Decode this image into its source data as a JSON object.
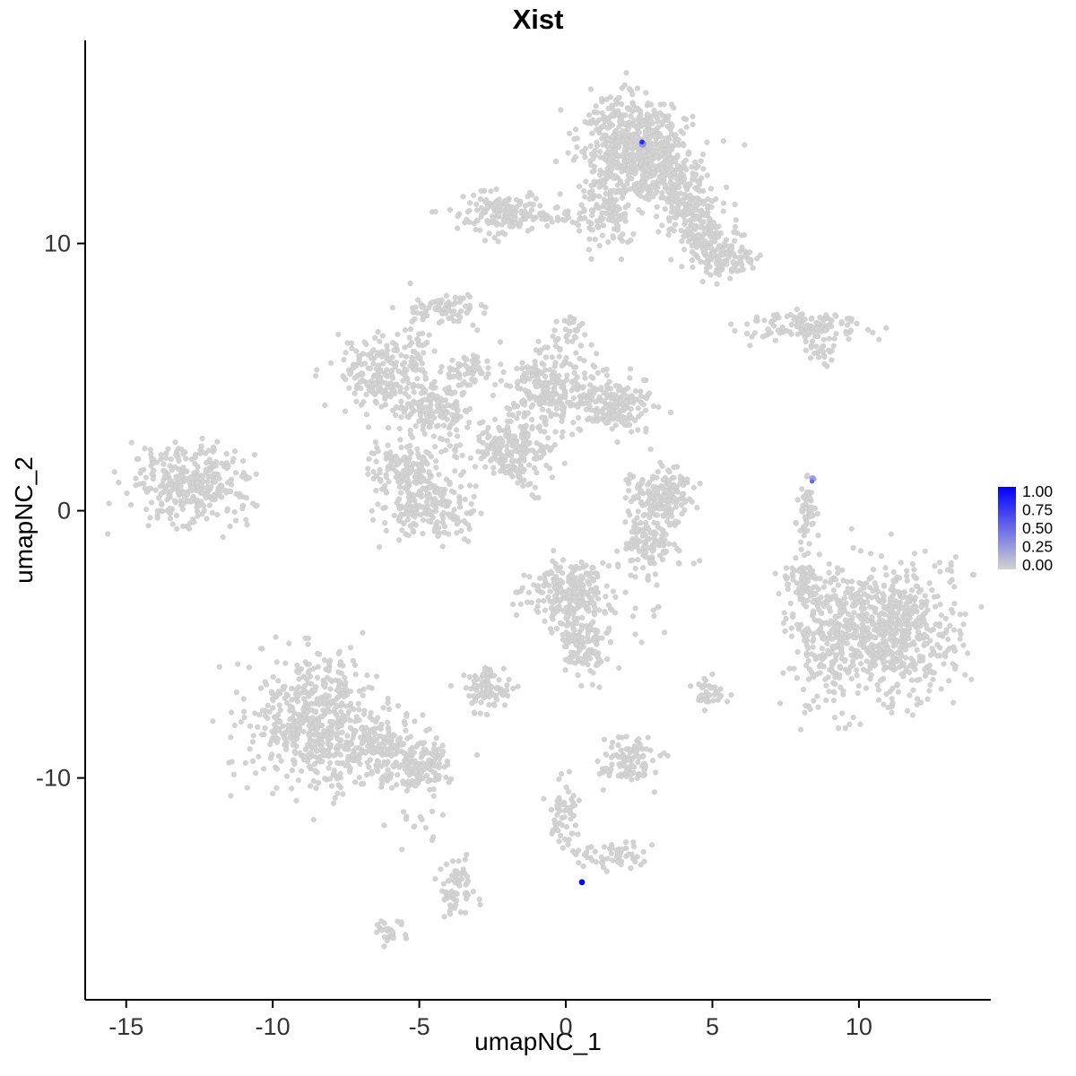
{
  "figure": {
    "background": "#ffffff"
  },
  "chart_data": {
    "type": "scatter",
    "title": "Xist",
    "xlabel": "umapNC_1",
    "ylabel": "umapNC_2",
    "xlim": [
      -16.4,
      14.5
    ],
    "ylim": [
      -18.3,
      17.6
    ],
    "x_ticks": [
      -15,
      -10,
      -5,
      0,
      5,
      10
    ],
    "x_tick_labels": [
      "-15",
      "-10",
      "-5",
      "0",
      "5",
      "10"
    ],
    "y_ticks": [
      -10,
      0,
      10
    ],
    "y_tick_labels": [
      "-10",
      "0",
      "10"
    ],
    "grid": false,
    "legend_position": "right",
    "axis_color": "#000000",
    "tick_label_color": "#333333",
    "point_color": "#d3d3d3",
    "point_edge_color": "#c6c6c6",
    "expression_scale": {
      "low_color": "#d3d3d3",
      "high_color": "#0000ff",
      "legend_labels": [
        "1.00",
        "0.75",
        "0.50",
        "0.25",
        "0.00"
      ]
    },
    "clusters": [
      {
        "cx": 2.2,
        "cy": 13.8,
        "sx": 0.9,
        "sy": 0.85,
        "n": 520
      },
      {
        "cx": 1.4,
        "cy": 11.4,
        "sx": 0.45,
        "sy": 0.7,
        "n": 130
      },
      {
        "cx": 3.3,
        "cy": 12.6,
        "sx": 0.7,
        "sy": 0.6,
        "n": 180
      },
      {
        "cx": 4.1,
        "cy": 11.3,
        "sx": 0.55,
        "sy": 0.5,
        "n": 130
      },
      {
        "cx": 4.9,
        "cy": 10.1,
        "sx": 0.55,
        "sy": 0.45,
        "n": 110
      },
      {
        "cx": 5.6,
        "cy": 9.3,
        "sx": 0.5,
        "sy": 0.35,
        "n": 80
      },
      {
        "cx": -2.2,
        "cy": 11.1,
        "sx": 0.75,
        "sy": 0.4,
        "n": 140
      },
      {
        "cx": -0.3,
        "cy": 11.0,
        "sx": 0.8,
        "sy": 0.18,
        "n": 40
      },
      {
        "cx": -4.1,
        "cy": 7.5,
        "sx": 0.6,
        "sy": 0.3,
        "n": 70
      },
      {
        "cx": -5.1,
        "cy": 6.2,
        "sx": 0.2,
        "sy": 0.7,
        "n": 45
      },
      {
        "cx": 8.3,
        "cy": 6.9,
        "sx": 0.95,
        "sy": 0.28,
        "n": 130
      },
      {
        "cx": 8.7,
        "cy": 5.9,
        "sx": 0.25,
        "sy": 0.2,
        "n": 20
      },
      {
        "cx": -6.4,
        "cy": 5.1,
        "sx": 0.75,
        "sy": 0.65,
        "n": 190
      },
      {
        "cx": -4.6,
        "cy": 3.8,
        "sx": 0.65,
        "sy": 0.55,
        "n": 150
      },
      {
        "cx": -3.3,
        "cy": 5.3,
        "sx": 0.35,
        "sy": 0.3,
        "n": 50
      },
      {
        "cx": -0.5,
        "cy": 4.6,
        "sx": 0.85,
        "sy": 0.75,
        "n": 260
      },
      {
        "cx": 1.8,
        "cy": 3.9,
        "sx": 0.65,
        "sy": 0.5,
        "n": 150
      },
      {
        "cx": -1.7,
        "cy": 2.4,
        "sx": 0.75,
        "sy": 0.55,
        "n": 170
      },
      {
        "cx": -1.8,
        "cy": 1.5,
        "sx": 0.55,
        "sy": 0.14,
        "n": 50,
        "rot": -52
      },
      {
        "cx": 0.2,
        "cy": 6.8,
        "sx": 0.25,
        "sy": 0.3,
        "n": 25
      },
      {
        "cx": -12.8,
        "cy": 1.0,
        "sx": 1.05,
        "sy": 0.75,
        "n": 330
      },
      {
        "cx": -5.4,
        "cy": 1.6,
        "sx": 0.7,
        "sy": 0.5,
        "n": 140
      },
      {
        "cx": -4.7,
        "cy": 0.1,
        "sx": 0.75,
        "sy": 0.6,
        "n": 190
      },
      {
        "cx": 3.2,
        "cy": 0.5,
        "sx": 0.6,
        "sy": 0.6,
        "n": 170
      },
      {
        "cx": 2.9,
        "cy": -1.3,
        "sx": 0.5,
        "sy": 0.5,
        "n": 110
      },
      {
        "cx": 8.2,
        "cy": 0.0,
        "sx": 0.16,
        "sy": 0.75,
        "n": 55
      },
      {
        "cx": 11.0,
        "cy": -4.4,
        "sx": 1.15,
        "sy": 1.2,
        "n": 650
      },
      {
        "cx": 8.8,
        "cy": -4.8,
        "sx": 0.7,
        "sy": 1.3,
        "n": 180
      },
      {
        "cx": 8.1,
        "cy": -2.7,
        "sx": 0.35,
        "sy": 0.4,
        "n": 60
      },
      {
        "cx": -8.7,
        "cy": -7.8,
        "sx": 1.05,
        "sy": 1.2,
        "n": 480
      },
      {
        "cx": -6.6,
        "cy": -9.0,
        "sx": 0.9,
        "sy": 0.7,
        "n": 230
      },
      {
        "cx": -4.9,
        "cy": -9.6,
        "sx": 0.5,
        "sy": 0.45,
        "n": 110
      },
      {
        "cx": -5.0,
        "cy": -11.8,
        "sx": 0.5,
        "sy": 0.5,
        "n": 14
      },
      {
        "cx": 0.0,
        "cy": -3.1,
        "sx": 0.7,
        "sy": 0.6,
        "n": 220
      },
      {
        "cx": 0.6,
        "cy": -4.8,
        "sx": 0.45,
        "sy": 0.65,
        "n": 130
      },
      {
        "cx": -2.6,
        "cy": -6.6,
        "sx": 0.4,
        "sy": 0.4,
        "n": 90
      },
      {
        "cx": 2.7,
        "cy": -3.6,
        "sx": 0.4,
        "sy": 1.0,
        "n": 16
      },
      {
        "cx": 4.9,
        "cy": -6.8,
        "sx": 0.35,
        "sy": 0.3,
        "n": 35
      },
      {
        "cx": 2.2,
        "cy": -9.4,
        "sx": 0.45,
        "sy": 0.4,
        "n": 100
      },
      {
        "cx": 0.0,
        "cy": -11.4,
        "sx": 0.3,
        "sy": 0.55,
        "n": 55
      },
      {
        "cx": 1.7,
        "cy": -12.9,
        "sx": 0.55,
        "sy": 0.25,
        "n": 55
      },
      {
        "cx": -3.7,
        "cy": -14.2,
        "sx": 0.3,
        "sy": 0.55,
        "n": 65
      },
      {
        "cx": -6.1,
        "cy": -15.7,
        "sx": 0.3,
        "sy": 0.2,
        "n": 28
      }
    ],
    "highlight_points": [
      {
        "x": 2.62,
        "y": 13.72,
        "value": 0.3,
        "r": 4.2
      },
      {
        "x": 2.6,
        "y": 13.8,
        "value": 0.8,
        "r": 2.8
      },
      {
        "x": 8.42,
        "y": 1.2,
        "value": 0.25,
        "r": 3.8
      },
      {
        "x": 8.4,
        "y": 1.1,
        "value": 0.5,
        "r": 2.6
      },
      {
        "x": 0.55,
        "y": -13.9,
        "value": 1.0,
        "r": 3.4
      }
    ]
  }
}
